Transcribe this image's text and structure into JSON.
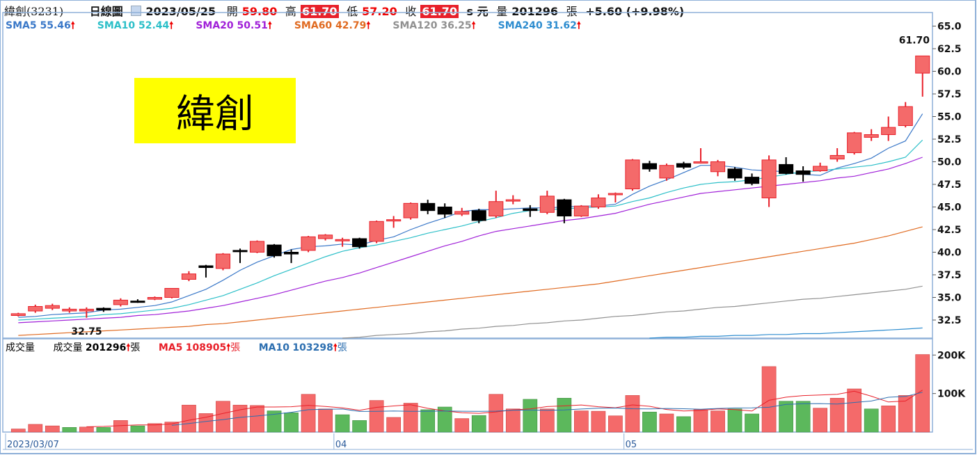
{
  "header": {
    "name": "緯創(3231)",
    "period": "日線圖",
    "date": "2023/05/25",
    "open_label": "開",
    "open": "59.80",
    "high_label": "高",
    "high": "61.70",
    "low_label": "低",
    "low": "57.20",
    "close_label": "收",
    "close": "61.70",
    "unit": "s 元",
    "volume_label": "量",
    "volume": "201296",
    "volume_unit": "張",
    "change": "+5.60 (+9.98%)"
  },
  "sma": [
    {
      "label": "SMA5",
      "value": "55.46",
      "color": "#3a78c8"
    },
    {
      "label": "SMA10",
      "value": "52.44",
      "color": "#2bbfc8"
    },
    {
      "label": "SMA20",
      "value": "50.51",
      "color": "#a020d8"
    },
    {
      "label": "SMA60",
      "value": "42.79",
      "color": "#e06a20"
    },
    {
      "label": "SMA120",
      "value": "36.25",
      "color": "#909090"
    },
    {
      "label": "SMA240",
      "value": "31.62",
      "color": "#2d8ccf"
    }
  ],
  "arrow": "🠕",
  "title_box": "緯創",
  "volume_panel": {
    "label": "成交量",
    "vol_label": "成交量",
    "vol_value": "201296",
    "vol_unit": "張",
    "ma5_label": "MA5",
    "ma5_value": "108905",
    "ma5_unit": "張",
    "ma5_color": "#e8202a",
    "ma10_label": "MA10",
    "ma10_value": "103298",
    "ma10_unit": "張",
    "ma10_color": "#2d6fb0"
  },
  "colors": {
    "up": "#f46a6a",
    "up_border": "#e8202a",
    "down": "#000000",
    "vol_up": "#f46a6a",
    "vol_down": "#5cb85c"
  },
  "chart_data": [
    {
      "type": "candlestick",
      "title": "",
      "ylim": [
        30.5,
        66.5
      ],
      "yticks": [
        32.5,
        35.0,
        37.5,
        40.0,
        42.5,
        45.0,
        47.5,
        50.0,
        52.5,
        55.0,
        57.5,
        60.0,
        62.5,
        65.0
      ],
      "ytick_labels": [
        "32.5",
        "35.0",
        "37.5",
        "40.0",
        "42.5",
        "45.0",
        "47.5",
        "50.0",
        "52.5",
        "55.0",
        "57.5",
        "60.0",
        "62.5",
        "65.0"
      ],
      "x_labels": [
        "2023/03/07",
        "04",
        "05"
      ],
      "x_label_index": [
        0,
        19,
        36
      ],
      "annotations": [
        {
          "text": "32.75",
          "index": 4,
          "value": 32.75
        },
        {
          "text": "61.70",
          "index": 53,
          "value": 61.7
        }
      ],
      "ohlc": [
        [
          33.0,
          33.3,
          32.9,
          33.2
        ],
        [
          33.5,
          34.2,
          33.3,
          34.0
        ],
        [
          33.8,
          34.3,
          33.6,
          34.1
        ],
        [
          33.5,
          33.9,
          33.3,
          33.7
        ],
        [
          33.5,
          33.9,
          32.75,
          33.7
        ],
        [
          33.8,
          33.9,
          33.4,
          33.6
        ],
        [
          34.2,
          34.9,
          34.0,
          34.7
        ],
        [
          34.6,
          34.8,
          34.4,
          34.5
        ],
        [
          34.8,
          35.1,
          34.7,
          35.0
        ],
        [
          35.0,
          36.0,
          34.9,
          36.0
        ],
        [
          37.0,
          37.9,
          36.8,
          37.6
        ],
        [
          38.5,
          38.6,
          37.2,
          38.3
        ],
        [
          38.2,
          39.9,
          38.0,
          39.8
        ],
        [
          40.2,
          40.4,
          38.8,
          40.1
        ],
        [
          40.0,
          41.3,
          39.9,
          41.2
        ],
        [
          40.8,
          40.9,
          39.4,
          39.6
        ],
        [
          40.0,
          40.3,
          38.8,
          39.8
        ],
        [
          40.2,
          41.8,
          40.0,
          41.7
        ],
        [
          41.5,
          42.0,
          41.3,
          41.9
        ],
        [
          41.4,
          41.6,
          40.6,
          41.4
        ],
        [
          41.5,
          41.6,
          40.4,
          40.6
        ],
        [
          41.2,
          43.5,
          41.0,
          43.4
        ],
        [
          43.5,
          44.0,
          42.7,
          43.6
        ],
        [
          43.8,
          45.5,
          43.6,
          45.4
        ],
        [
          45.4,
          45.8,
          44.2,
          44.6
        ],
        [
          45.0,
          45.4,
          43.8,
          44.2
        ],
        [
          44.2,
          44.9,
          44.0,
          44.5
        ],
        [
          44.6,
          44.8,
          43.2,
          43.5
        ],
        [
          44.0,
          46.8,
          43.8,
          45.6
        ],
        [
          45.8,
          46.3,
          45.3,
          45.8
        ],
        [
          44.8,
          45.2,
          43.9,
          44.6
        ],
        [
          44.4,
          46.8,
          44.2,
          46.2
        ],
        [
          45.8,
          45.9,
          43.2,
          44.0
        ],
        [
          44.0,
          45.2,
          43.9,
          45.1
        ],
        [
          45.0,
          46.4,
          44.8,
          46.0
        ],
        [
          46.5,
          46.6,
          45.5,
          46.5
        ],
        [
          47.0,
          50.3,
          46.8,
          50.2
        ],
        [
          49.8,
          50.1,
          48.9,
          49.2
        ],
        [
          48.2,
          49.8,
          47.9,
          49.6
        ],
        [
          49.8,
          50.0,
          49.2,
          49.4
        ],
        [
          50.0,
          51.5,
          49.8,
          50.0
        ],
        [
          48.9,
          50.2,
          48.4,
          50.0
        ],
        [
          49.2,
          49.4,
          47.9,
          48.2
        ],
        [
          48.3,
          48.7,
          47.4,
          47.6
        ],
        [
          46.0,
          50.7,
          45.0,
          50.2
        ],
        [
          49.7,
          50.5,
          48.6,
          48.7
        ],
        [
          49.0,
          49.5,
          47.8,
          48.6
        ],
        [
          49.0,
          49.9,
          48.9,
          49.5
        ],
        [
          50.3,
          51.5,
          50.0,
          50.7
        ],
        [
          51.0,
          53.3,
          50.8,
          53.2
        ],
        [
          52.7,
          53.6,
          52.3,
          53.0
        ],
        [
          53.0,
          55.0,
          52.3,
          53.8
        ],
        [
          54.0,
          56.6,
          53.8,
          56.1
        ],
        [
          59.8,
          61.7,
          57.2,
          61.7
        ]
      ],
      "series": [
        {
          "name": "SMA5",
          "color": "#3a78c8",
          "values": [
            32.8,
            32.9,
            33.1,
            33.2,
            33.3,
            33.6,
            33.7,
            33.9,
            34.1,
            34.5,
            35.2,
            35.9,
            36.9,
            38.0,
            38.9,
            39.6,
            40.3,
            40.6,
            40.7,
            40.9,
            40.8,
            41.3,
            41.7,
            42.5,
            43.2,
            43.8,
            44.5,
            44.7,
            44.7,
            44.8,
            44.9,
            44.9,
            45.0,
            45.1,
            45.1,
            45.3,
            46.4,
            47.3,
            48.0,
            48.8,
            49.6,
            49.6,
            49.4,
            49.1,
            49.0,
            48.9,
            48.6,
            48.5,
            49.3,
            49.8,
            50.4,
            51.5,
            52.3,
            55.3
          ]
        },
        {
          "name": "SMA10",
          "color": "#2bbfc8",
          "values": [
            32.5,
            32.6,
            32.7,
            32.8,
            32.9,
            33.1,
            33.2,
            33.4,
            33.6,
            33.8,
            34.2,
            34.7,
            35.2,
            35.9,
            36.6,
            37.4,
            38.1,
            38.8,
            39.5,
            40.1,
            40.5,
            40.8,
            41.2,
            41.6,
            42.1,
            42.5,
            42.9,
            43.4,
            43.8,
            44.3,
            44.6,
            44.7,
            44.8,
            44.9,
            45.0,
            45.1,
            45.6,
            46.0,
            46.6,
            47.1,
            47.5,
            47.7,
            47.8,
            48.0,
            48.3,
            48.6,
            48.9,
            49.0,
            49.2,
            49.4,
            49.6,
            50.0,
            50.5,
            52.4
          ]
        },
        {
          "name": "SMA20",
          "color": "#a020d8",
          "values": [
            32.2,
            32.3,
            32.4,
            32.5,
            32.6,
            32.7,
            32.8,
            33.0,
            33.1,
            33.3,
            33.5,
            33.8,
            34.1,
            34.5,
            34.9,
            35.3,
            35.8,
            36.3,
            36.8,
            37.2,
            37.7,
            38.3,
            38.9,
            39.5,
            40.1,
            40.7,
            41.2,
            41.8,
            42.3,
            42.6,
            42.9,
            43.2,
            43.5,
            43.7,
            44.0,
            44.3,
            44.8,
            45.3,
            45.7,
            46.1,
            46.5,
            46.7,
            46.9,
            47.1,
            47.3,
            47.5,
            47.7,
            47.9,
            48.2,
            48.4,
            48.8,
            49.2,
            49.8,
            50.5
          ]
        },
        {
          "name": "SMA60",
          "color": "#e06a20",
          "values": [
            30.8,
            30.9,
            31.0,
            31.1,
            31.2,
            31.3,
            31.4,
            31.5,
            31.6,
            31.7,
            31.8,
            32.0,
            32.1,
            32.3,
            32.5,
            32.7,
            32.9,
            33.1,
            33.3,
            33.5,
            33.7,
            33.9,
            34.1,
            34.3,
            34.5,
            34.7,
            34.9,
            35.1,
            35.3,
            35.5,
            35.7,
            35.9,
            36.1,
            36.3,
            36.5,
            36.8,
            37.1,
            37.4,
            37.7,
            38.0,
            38.3,
            38.6,
            38.9,
            39.2,
            39.5,
            39.8,
            40.1,
            40.4,
            40.7,
            41.0,
            41.4,
            41.8,
            42.3,
            42.8
          ]
        },
        {
          "name": "SMA120",
          "color": "#909090",
          "values": [
            null,
            null,
            null,
            null,
            null,
            null,
            null,
            null,
            null,
            null,
            null,
            null,
            null,
            null,
            null,
            null,
            null,
            null,
            null,
            30.5,
            30.6,
            30.8,
            30.9,
            31.0,
            31.2,
            31.3,
            31.5,
            31.6,
            31.8,
            31.9,
            32.1,
            32.2,
            32.4,
            32.5,
            32.7,
            32.9,
            33.0,
            33.2,
            33.4,
            33.5,
            33.7,
            33.9,
            34.0,
            34.2,
            34.4,
            34.6,
            34.8,
            34.9,
            35.1,
            35.3,
            35.5,
            35.7,
            35.9,
            36.25
          ]
        },
        {
          "name": "SMA240",
          "color": "#2d8ccf",
          "values": [
            null,
            null,
            null,
            null,
            null,
            null,
            null,
            null,
            null,
            null,
            null,
            null,
            null,
            null,
            null,
            null,
            null,
            null,
            null,
            null,
            null,
            null,
            null,
            null,
            null,
            null,
            null,
            null,
            null,
            null,
            null,
            null,
            null,
            null,
            null,
            null,
            null,
            30.5,
            30.6,
            30.6,
            30.7,
            30.7,
            30.8,
            30.8,
            30.9,
            30.9,
            31.0,
            31.0,
            31.1,
            31.2,
            31.3,
            31.4,
            31.5,
            31.62
          ]
        }
      ]
    },
    {
      "type": "bar",
      "title": "",
      "ylim": [
        0,
        215000
      ],
      "yticks": [
        100000,
        200000
      ],
      "ytick_labels": [
        "100K",
        "200K"
      ],
      "values": [
        8000,
        20000,
        16000,
        12000,
        13000,
        12000,
        30000,
        16000,
        22000,
        26000,
        70000,
        48000,
        80000,
        70000,
        69000,
        55000,
        50000,
        98000,
        60000,
        45000,
        30000,
        82000,
        38000,
        75000,
        58000,
        65000,
        35000,
        43000,
        98000,
        60000,
        85000,
        60000,
        88000,
        55000,
        54000,
        42000,
        95000,
        52000,
        47000,
        40000,
        58000,
        55000,
        60000,
        47000,
        170000,
        80000,
        80000,
        62000,
        88000,
        112000,
        60000,
        68000,
        95000,
        201296
      ],
      "up": [
        1,
        1,
        1,
        0,
        1,
        0,
        1,
        0,
        1,
        1,
        1,
        1,
        1,
        1,
        1,
        0,
        0,
        1,
        1,
        0,
        0,
        1,
        1,
        1,
        0,
        0,
        1,
        0,
        1,
        1,
        0,
        1,
        0,
        1,
        1,
        1,
        1,
        0,
        1,
        0,
        1,
        1,
        0,
        0,
        1,
        0,
        0,
        1,
        1,
        1,
        0,
        1,
        1,
        1
      ],
      "series": [
        {
          "name": "MA5",
          "color": "#e8202a",
          "values": [
            null,
            null,
            null,
            null,
            13800,
            14600,
            16600,
            18600,
            18600,
            21200,
            30800,
            38400,
            48200,
            57800,
            65000,
            65000,
            65800,
            69400,
            66400,
            62800,
            56600,
            64200,
            67800,
            70800,
            61600,
            55000,
            50200,
            48600,
            52200,
            57600,
            60000,
            66200,
            68000,
            70200,
            65800,
            63000,
            70400,
            66800,
            58600,
            54800,
            56200,
            60000,
            58400,
            54600,
            82400,
            90600,
            94600,
            96300,
            98000,
            106000,
            93000,
            78000,
            80600,
            108905
          ]
        },
        {
          "name": "MA10",
          "color": "#2d6fb0",
          "values": [
            null,
            null,
            null,
            null,
            null,
            null,
            null,
            null,
            null,
            17500,
            22300,
            27500,
            32400,
            38200,
            41700,
            46100,
            51400,
            58000,
            59100,
            59800,
            53500,
            53600,
            54800,
            53700,
            54000,
            54600,
            54000,
            53600,
            54200,
            56800,
            57100,
            56600,
            57300,
            59800,
            61800,
            62300,
            60600,
            60000,
            61300,
            60500,
            59200,
            61300,
            62600,
            62900,
            64300,
            71800,
            73600,
            73900,
            72800,
            76800,
            80600,
            90400,
            92500,
            103298
          ]
        }
      ]
    }
  ]
}
